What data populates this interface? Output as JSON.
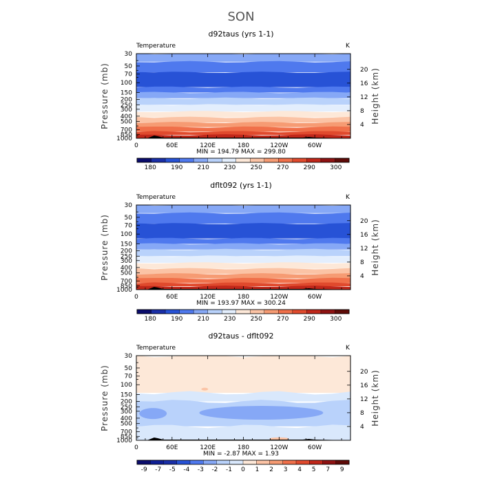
{
  "chart_data": {
    "type": "heatmap",
    "title": "SON",
    "panels": [
      {
        "title": "d92taus (yrs 1-1)",
        "left_label": "Temperature",
        "right_label": "K",
        "ylabel": "Pressure (mb)",
        "y2label": "Height (km)",
        "stats": "MIN = 194.79   MAX = 299.80",
        "levels": [
          "180",
          "190",
          "210",
          "230",
          "250",
          "270",
          "290",
          "300"
        ],
        "colors": [
          "#0a0c6c",
          "#1a2fa8",
          "#2752d6",
          "#4f79ee",
          "#86a8f6",
          "#b9d2fb",
          "#e3eefd",
          "#fde8d8",
          "#fbc3a5",
          "#f69b73",
          "#f0704a",
          "#e04a2d",
          "#c0271a",
          "#8e1212",
          "#5e0a07"
        ],
        "layers": [
          {
            "top": 30,
            "bottom": 42,
            "color": "#86a8f6"
          },
          {
            "top": 42,
            "bottom": 65,
            "color": "#4f79ee"
          },
          {
            "top": 65,
            "bottom": 120,
            "color": "#2752d6"
          },
          {
            "top": 120,
            "bottom": 150,
            "color": "#4f79ee"
          },
          {
            "top": 150,
            "bottom": 190,
            "color": "#86a8f6"
          },
          {
            "top": 190,
            "bottom": 250,
            "color": "#b9d2fb"
          },
          {
            "top": 250,
            "bottom": 330,
            "color": "#e3eefd"
          },
          {
            "top": 330,
            "bottom": 420,
            "color": "#fde8d8"
          },
          {
            "top": 420,
            "bottom": 520,
            "color": "#fbc3a5"
          },
          {
            "top": 520,
            "bottom": 630,
            "color": "#f69b73"
          },
          {
            "top": 630,
            "bottom": 760,
            "color": "#f0704a"
          },
          {
            "top": 760,
            "bottom": 870,
            "color": "#e04a2d"
          },
          {
            "top": 870,
            "bottom": 1000,
            "color": "#c0271a"
          }
        ]
      },
      {
        "title": "dflt092 (yrs 1-1)",
        "left_label": "Temperature",
        "right_label": "K",
        "ylabel": "Pressure (mb)",
        "y2label": "Height (km)",
        "stats": "MIN = 193.97   MAX = 300.24",
        "levels": [
          "180",
          "190",
          "210",
          "230",
          "250",
          "270",
          "290",
          "300"
        ],
        "colors": [
          "#0a0c6c",
          "#1a2fa8",
          "#2752d6",
          "#4f79ee",
          "#86a8f6",
          "#b9d2fb",
          "#e3eefd",
          "#fde8d8",
          "#fbc3a5",
          "#f69b73",
          "#f0704a",
          "#e04a2d",
          "#c0271a",
          "#8e1212",
          "#5e0a07"
        ],
        "layers": [
          {
            "top": 30,
            "bottom": 42,
            "color": "#86a8f6"
          },
          {
            "top": 42,
            "bottom": 65,
            "color": "#4f79ee"
          },
          {
            "top": 65,
            "bottom": 120,
            "color": "#2752d6"
          },
          {
            "top": 120,
            "bottom": 150,
            "color": "#4f79ee"
          },
          {
            "top": 150,
            "bottom": 190,
            "color": "#86a8f6"
          },
          {
            "top": 190,
            "bottom": 250,
            "color": "#b9d2fb"
          },
          {
            "top": 250,
            "bottom": 330,
            "color": "#e3eefd"
          },
          {
            "top": 330,
            "bottom": 420,
            "color": "#fde8d8"
          },
          {
            "top": 420,
            "bottom": 520,
            "color": "#fbc3a5"
          },
          {
            "top": 520,
            "bottom": 630,
            "color": "#f69b73"
          },
          {
            "top": 630,
            "bottom": 760,
            "color": "#f0704a"
          },
          {
            "top": 760,
            "bottom": 870,
            "color": "#e04a2d"
          },
          {
            "top": 870,
            "bottom": 1000,
            "color": "#c0271a"
          }
        ]
      },
      {
        "title": "d92taus - dflt092",
        "left_label": "Temperature",
        "right_label": "K",
        "ylabel": "Pressure (mb)",
        "y2label": "Height (km)",
        "stats": "MIN =   -2.87   MAX =    1.93",
        "levels": [
          "-9",
          "-7",
          "-5",
          "-4",
          "-3",
          "-2",
          "-1",
          "0",
          "1",
          "2",
          "3",
          "4",
          "5",
          "7",
          "9"
        ],
        "colors": [
          "#0a0c6c",
          "#0f1f95",
          "#1a2fa8",
          "#2752d6",
          "#4f79ee",
          "#86a8f6",
          "#b9d2fb",
          "#d9e8fc",
          "#fde8d8",
          "#fbc3a5",
          "#f69b73",
          "#f0704a",
          "#e04a2d",
          "#c0271a",
          "#8e1212",
          "#5e0a07"
        ],
        "layers": [
          {
            "top": 30,
            "bottom": 140,
            "color": "#fde8d8"
          },
          {
            "top": 140,
            "bottom": 200,
            "color": "#d9e8fc"
          },
          {
            "top": 200,
            "bottom": 560,
            "color": "#b9d2fb"
          },
          {
            "top": 560,
            "bottom": 1000,
            "color": "#d9e8fc"
          }
        ]
      }
    ],
    "yticks": [
      "30",
      "50",
      "70",
      "100",
      "150",
      "200",
      "250",
      "300",
      "400",
      "500",
      "700",
      "850",
      "1000"
    ],
    "y2ticks": [
      "20",
      "16",
      "12",
      "8",
      "4"
    ],
    "xticks": [
      "0",
      "60E",
      "120E",
      "180",
      "120W",
      "60W"
    ],
    "ylim": [
      1000,
      30
    ],
    "xlim": [
      0,
      360
    ]
  }
}
